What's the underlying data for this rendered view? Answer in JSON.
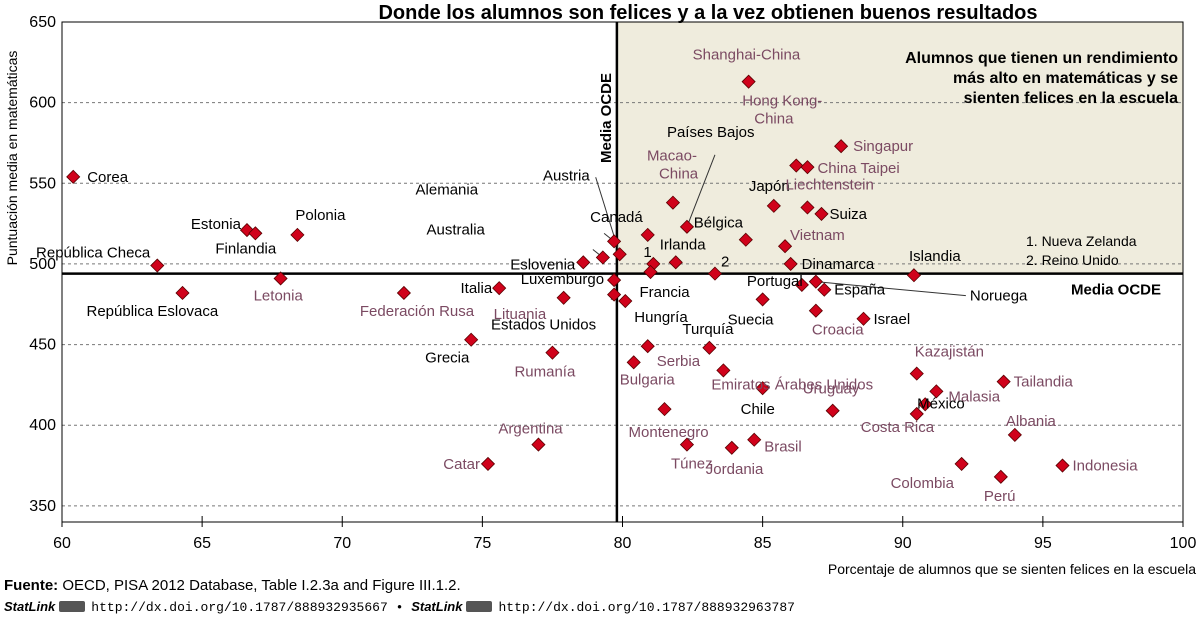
{
  "chart_data": {
    "type": "scatter",
    "title": "Donde los alumnos son felices y a la vez obtienen buenos resultados",
    "xlabel": "Porcentaje de alumnos que se sienten felices en la escuela",
    "ylabel": "Puntuación media en matemáticas",
    "xlim": [
      60,
      100
    ],
    "ylim": [
      340,
      650
    ],
    "x_ticks": [
      "60",
      "65",
      "70",
      "75",
      "80",
      "85",
      "90",
      "95",
      "100"
    ],
    "y_ticks": [
      "350",
      "400",
      "450",
      "500",
      "550",
      "600",
      "650"
    ],
    "grid": "horizontal dashed",
    "reference_lines": {
      "x": 79.8,
      "y": 494,
      "x_label": "Media OCDE",
      "y_label": "Media OCDE"
    },
    "quadrant_label": [
      "Alumnos que tienen un rendimiento",
      "más alto en matemáticas y se",
      "sienten felices en la escuela"
    ],
    "footnotes": [
      "1. Nueva Zelanda",
      "2. Reino Unido"
    ],
    "marker_color": "#d0021b",
    "label_color_dark": "#000000",
    "label_color_partner": "#7b4a62",
    "quadrant_fill": "#efecdd",
    "points": [
      {
        "name": "Corea",
        "x": 60.4,
        "y": 554,
        "color": "dark"
      },
      {
        "name": "República Checa",
        "x": 63.4,
        "y": 499,
        "color": "dark"
      },
      {
        "name": "República Eslovaca",
        "x": 64.3,
        "y": 482,
        "color": "dark"
      },
      {
        "name": "Estonia",
        "x": 66.6,
        "y": 521,
        "color": "dark"
      },
      {
        "name": "Finlandia",
        "x": 66.9,
        "y": 519,
        "color": "dark"
      },
      {
        "name": "Polonia",
        "x": 68.4,
        "y": 518,
        "color": "dark"
      },
      {
        "name": "Letonia",
        "x": 67.8,
        "y": 491,
        "color": "partner"
      },
      {
        "name": "Federación Rusa",
        "x": 72.2,
        "y": 482,
        "color": "partner"
      },
      {
        "name": "Italia",
        "x": 75.6,
        "y": 485,
        "color": "dark"
      },
      {
        "name": "Grecia",
        "x": 74.6,
        "y": 453,
        "color": "dark"
      },
      {
        "name": "Argentina",
        "x": 77.0,
        "y": 388,
        "color": "partner"
      },
      {
        "name": "Catar",
        "x": 75.2,
        "y": 376,
        "color": "partner"
      },
      {
        "name": "Lituania",
        "x": 77.9,
        "y": 479,
        "color": "partner"
      },
      {
        "name": "Rumanía",
        "x": 77.5,
        "y": 445,
        "color": "partner"
      },
      {
        "name": "Eslovenia",
        "x": 78.6,
        "y": 501,
        "color": "dark"
      },
      {
        "name": "Australia",
        "x": 79.3,
        "y": 504,
        "color": "dark"
      },
      {
        "name": "Alemania",
        "x": 79.7,
        "y": 514,
        "color": "dark"
      },
      {
        "name": "Austria",
        "x": 79.9,
        "y": 506,
        "color": "dark"
      },
      {
        "name": "Luxemburgo",
        "x": 79.7,
        "y": 490,
        "color": "dark"
      },
      {
        "name": "Estados Unidos",
        "x": 79.7,
        "y": 481,
        "color": "dark"
      },
      {
        "name": "Hungría",
        "x": 80.1,
        "y": 477,
        "color": "dark"
      },
      {
        "name": "1",
        "x": 81.1,
        "y": 500,
        "color": "dark"
      },
      {
        "name": "Francia",
        "x": 81.0,
        "y": 495,
        "color": "dark"
      },
      {
        "name": "Irlanda",
        "x": 81.9,
        "y": 501,
        "color": "dark"
      },
      {
        "name": "Canadá",
        "x": 80.9,
        "y": 518,
        "color": "dark"
      },
      {
        "name": "Macao-China",
        "x": 81.8,
        "y": 538,
        "color": "partner"
      },
      {
        "name": "Países Bajos",
        "x": 82.3,
        "y": 523,
        "color": "dark"
      },
      {
        "name": "2",
        "x": 83.3,
        "y": 494,
        "color": "dark"
      },
      {
        "name": "Serbia",
        "x": 80.9,
        "y": 449,
        "color": "partner"
      },
      {
        "name": "Bulgaria",
        "x": 80.4,
        "y": 439,
        "color": "partner"
      },
      {
        "name": "Turquía",
        "x": 83.1,
        "y": 448,
        "color": "dark"
      },
      {
        "name": "Emiratos Árabes Unidos",
        "x": 83.6,
        "y": 434,
        "color": "partner"
      },
      {
        "name": "Montenegro",
        "x": 81.5,
        "y": 410,
        "color": "partner"
      },
      {
        "name": "Túnez",
        "x": 82.3,
        "y": 388,
        "color": "partner"
      },
      {
        "name": "Jordania",
        "x": 83.9,
        "y": 386,
        "color": "partner"
      },
      {
        "name": "Brasil",
        "x": 84.7,
        "y": 391,
        "color": "partner"
      },
      {
        "name": "Chile",
        "x": 85.0,
        "y": 423,
        "color": "dark"
      },
      {
        "name": "Suecia",
        "x": 85.0,
        "y": 478,
        "color": "dark"
      },
      {
        "name": "Shanghai-China",
        "x": 84.5,
        "y": 613,
        "color": "partner"
      },
      {
        "name": "Japón",
        "x": 85.4,
        "y": 536,
        "color": "dark"
      },
      {
        "name": "Bélgica",
        "x": 84.4,
        "y": 515,
        "color": "dark"
      },
      {
        "name": "Vietnam",
        "x": 85.8,
        "y": 511,
        "color": "partner"
      },
      {
        "name": "Dinamarca",
        "x": 86.0,
        "y": 500,
        "color": "dark"
      },
      {
        "name": "Hong Kong-China",
        "x": 86.2,
        "y": 561,
        "color": "partner"
      },
      {
        "name": "China Taipei",
        "x": 86.6,
        "y": 560,
        "color": "partner"
      },
      {
        "name": "Singapur",
        "x": 87.8,
        "y": 573,
        "color": "partner"
      },
      {
        "name": "Liechtenstein",
        "x": 86.6,
        "y": 535,
        "color": "partner"
      },
      {
        "name": "Suiza",
        "x": 87.1,
        "y": 531,
        "color": "dark"
      },
      {
        "name": "Portugal",
        "x": 86.4,
        "y": 487,
        "color": "dark"
      },
      {
        "name": "España",
        "x": 87.2,
        "y": 484,
        "color": "dark"
      },
      {
        "name": "Noruega",
        "x": 86.9,
        "y": 489,
        "color": "dark"
      },
      {
        "name": "Croacia",
        "x": 86.9,
        "y": 471,
        "color": "partner"
      },
      {
        "name": "Israel",
        "x": 88.6,
        "y": 466,
        "color": "dark"
      },
      {
        "name": "Uruguay",
        "x": 87.5,
        "y": 409,
        "color": "partner"
      },
      {
        "name": "Islandia",
        "x": 90.4,
        "y": 493,
        "color": "dark"
      },
      {
        "name": "Kazajistán",
        "x": 90.5,
        "y": 432,
        "color": "partner"
      },
      {
        "name": "Malasia",
        "x": 91.2,
        "y": 421,
        "color": "partner"
      },
      {
        "name": "México",
        "x": 90.8,
        "y": 413,
        "color": "dark"
      },
      {
        "name": "Costa Rica",
        "x": 90.5,
        "y": 407,
        "color": "partner"
      },
      {
        "name": "Tailandia",
        "x": 93.6,
        "y": 427,
        "color": "partner"
      },
      {
        "name": "Albania",
        "x": 94.0,
        "y": 394,
        "color": "partner"
      },
      {
        "name": "Colombia",
        "x": 92.1,
        "y": 376,
        "color": "partner"
      },
      {
        "name": "Perú",
        "x": 93.5,
        "y": 368,
        "color": "partner"
      },
      {
        "name": "Indonesia",
        "x": 95.7,
        "y": 375,
        "color": "partner"
      }
    ]
  },
  "footer": {
    "source_label": "Fuente:",
    "source_text": " OECD, PISA 2012 Database, Table I.2.3a and Figure III.1.2.",
    "statlink_brand_1": "StatLink",
    "statlink_url_1": "http://dx.doi.org/10.1787/888932935667",
    "bullet": "•",
    "statlink_brand_2": "StatLink",
    "statlink_url_2": "http://dx.doi.org/10.1787/888932963787"
  }
}
